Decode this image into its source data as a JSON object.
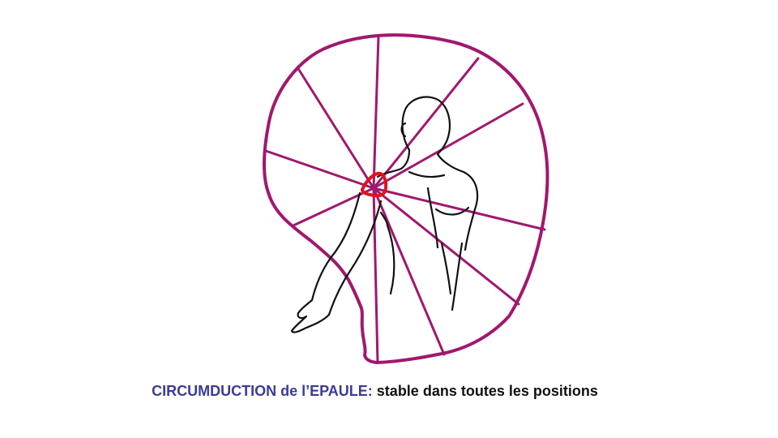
{
  "caption": {
    "highlight": "CIRCUMDUCTION  de l’EPAULE:",
    "rest": " stable dans toutes les positions"
  },
  "colors": {
    "cone": "#a0186e",
    "joint": "#e0131b",
    "body": "#111111",
    "caption_highlight": "#3b3b98",
    "caption_text": "#111111"
  }
}
